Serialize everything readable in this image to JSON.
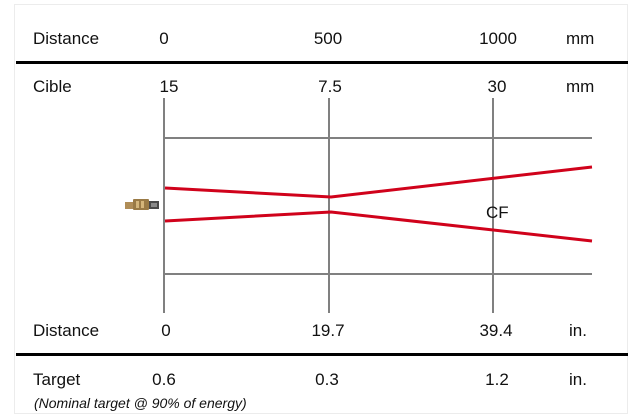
{
  "top_header": {
    "label": "Distance",
    "values": [
      "0",
      "500",
      "1000"
    ],
    "unit": "mm"
  },
  "spot_mm": {
    "label": "Cible",
    "values": [
      "15",
      "7.5",
      "30"
    ],
    "unit": "mm"
  },
  "distance_in": {
    "label": "Distance",
    "values": [
      "0",
      "19.7",
      "39.4"
    ],
    "unit": "in."
  },
  "spot_in": {
    "label": "Target",
    "values": [
      "0.6",
      "0.3",
      "1.2"
    ],
    "unit": "in."
  },
  "beam_label": "CF",
  "footnote": "(Nominal target @ 90% of energy)",
  "colors": {
    "beam": "#d0021b",
    "grid": "#808080",
    "rule": "#000000"
  },
  "icons": {
    "sensor": "infrared-sensor-icon"
  }
}
